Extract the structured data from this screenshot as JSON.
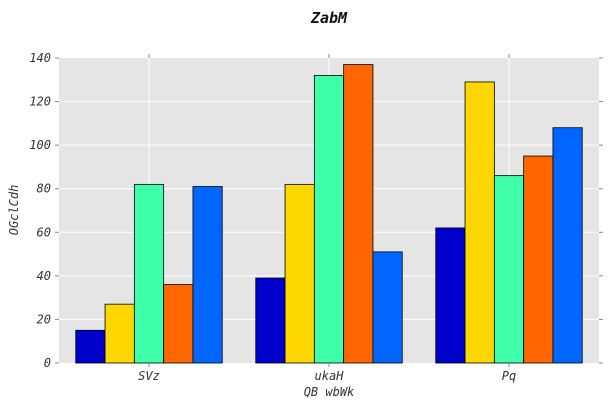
{
  "chart_data": {
    "type": "bar",
    "title": "ZabM",
    "xlabel": "QB wbWk",
    "ylabel": "OGclCdh",
    "categories": [
      "SVz",
      "ukaH",
      "Pq"
    ],
    "series": [
      {
        "color": "#0000cc",
        "values": [
          15,
          39,
          62
        ]
      },
      {
        "color": "#ffd700",
        "values": [
          27,
          82,
          129
        ]
      },
      {
        "color": "#3fffa8",
        "values": [
          82,
          132,
          86
        ]
      },
      {
        "color": "#ff6600",
        "values": [
          36,
          137,
          95
        ]
      },
      {
        "color": "#0066ff",
        "values": [
          81,
          51,
          108
        ]
      }
    ],
    "ylim": [
      0,
      140
    ],
    "yticks": [
      "0",
      "20",
      "40",
      "60",
      "80",
      "100",
      "120",
      "140"
    ],
    "grid": true,
    "legend": "none"
  }
}
